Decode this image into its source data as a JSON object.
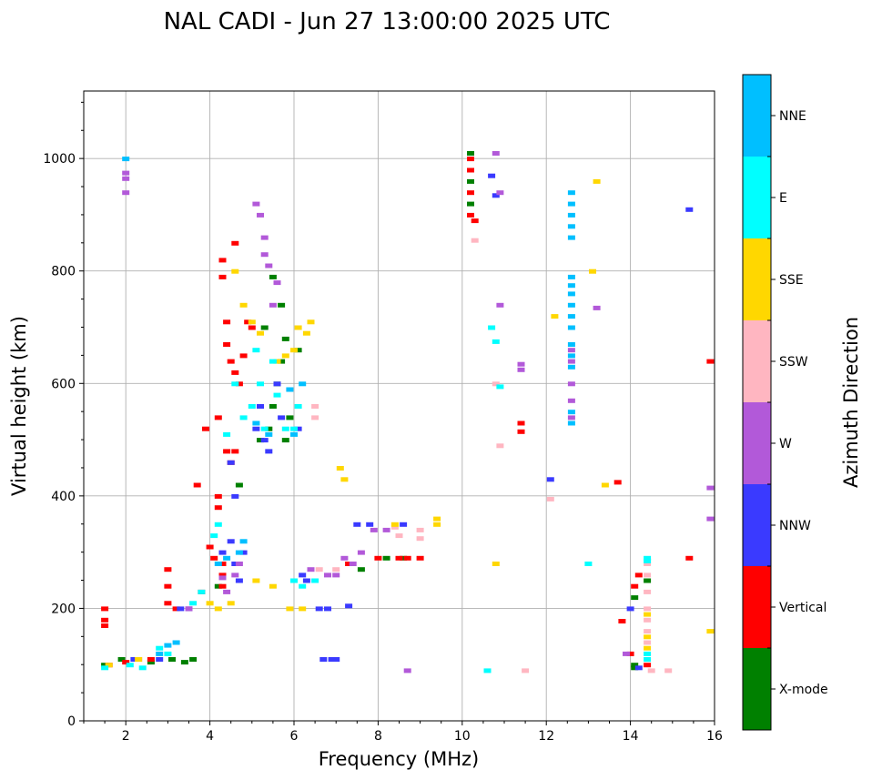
{
  "chart_data": {
    "type": "scatter",
    "title": "NAL CADI - Jun 27 13:00:00 2025 UTC",
    "xlabel": "Frequency (MHz)",
    "ylabel": "Virtual height (km)",
    "xlim": [
      1,
      16
    ],
    "ylim": [
      0,
      1120
    ],
    "xticks": [
      "2",
      "4",
      "6",
      "8",
      "10",
      "12",
      "14",
      "16"
    ],
    "yticks": [
      "0",
      "200",
      "400",
      "600",
      "800",
      "1000"
    ],
    "grid": true,
    "colorbar": {
      "label": "Azimuth Direction",
      "categories": [
        {
          "name": "X-mode",
          "color": "#008000"
        },
        {
          "name": "Vertical",
          "color": "#ff0000"
        },
        {
          "name": "NNW",
          "color": "#3a3aff"
        },
        {
          "name": "W",
          "color": "#b259d9"
        },
        {
          "name": "SSW",
          "color": "#ffb6c1"
        },
        {
          "name": "SSE",
          "color": "#ffd700"
        },
        {
          "name": "E",
          "color": "#00ffff"
        },
        {
          "name": "NNE",
          "color": "#00bfff"
        }
      ]
    },
    "series": [
      {
        "name": "X-mode",
        "points": [
          [
            1.5,
            100
          ],
          [
            1.9,
            110
          ],
          [
            2.6,
            105
          ],
          [
            3.1,
            110
          ],
          [
            3.4,
            105
          ],
          [
            3.6,
            110
          ],
          [
            4.2,
            240
          ],
          [
            4.7,
            420
          ],
          [
            5.2,
            500
          ],
          [
            5.4,
            520
          ],
          [
            5.5,
            560
          ],
          [
            5.6,
            600
          ],
          [
            5.7,
            640
          ],
          [
            5.8,
            680
          ],
          [
            5.7,
            740
          ],
          [
            5.5,
            790
          ],
          [
            5.3,
            700
          ],
          [
            5.8,
            500
          ],
          [
            5.9,
            540
          ],
          [
            6.1,
            660
          ],
          [
            7.6,
            270
          ],
          [
            8.2,
            290
          ],
          [
            8.6,
            290
          ],
          [
            10.2,
            1010
          ],
          [
            10.2,
            960
          ],
          [
            10.2,
            920
          ],
          [
            14.1,
            100
          ],
          [
            14.1,
            95
          ],
          [
            14.1,
            220
          ],
          [
            14.4,
            250
          ]
        ]
      },
      {
        "name": "Vertical",
        "points": [
          [
            1.5,
            200
          ],
          [
            1.5,
            180
          ],
          [
            1.5,
            170
          ],
          [
            1.6,
            100
          ],
          [
            2.0,
            105
          ],
          [
            2.3,
            110
          ],
          [
            2.6,
            110
          ],
          [
            3.0,
            270
          ],
          [
            3.0,
            240
          ],
          [
            3.0,
            210
          ],
          [
            3.2,
            200
          ],
          [
            3.5,
            200
          ],
          [
            3.7,
            420
          ],
          [
            3.8,
            230
          ],
          [
            3.9,
            520
          ],
          [
            4.0,
            310
          ],
          [
            4.1,
            290
          ],
          [
            4.2,
            540
          ],
          [
            4.2,
            400
          ],
          [
            4.2,
            380
          ],
          [
            4.3,
            280
          ],
          [
            4.3,
            260
          ],
          [
            4.3,
            240
          ],
          [
            4.4,
            480
          ],
          [
            4.5,
            460
          ],
          [
            4.6,
            480
          ],
          [
            4.4,
            710
          ],
          [
            4.4,
            670
          ],
          [
            4.5,
            640
          ],
          [
            4.6,
            620
          ],
          [
            4.7,
            600
          ],
          [
            4.8,
            650
          ],
          [
            4.9,
            710
          ],
          [
            5.0,
            700
          ],
          [
            4.3,
            820
          ],
          [
            4.3,
            790
          ],
          [
            4.6,
            850
          ],
          [
            7.3,
            280
          ],
          [
            8.0,
            290
          ],
          [
            8.5,
            290
          ],
          [
            8.7,
            290
          ],
          [
            9.0,
            290
          ],
          [
            10.2,
            1000
          ],
          [
            10.2,
            980
          ],
          [
            10.2,
            940
          ],
          [
            10.2,
            900
          ],
          [
            10.3,
            890
          ],
          [
            11.4,
            530
          ],
          [
            11.4,
            515
          ],
          [
            13.7,
            425
          ],
          [
            13.8,
            178
          ],
          [
            14.0,
            120
          ],
          [
            14.1,
            240
          ],
          [
            14.2,
            260
          ],
          [
            14.4,
            100
          ],
          [
            15.4,
            290
          ],
          [
            15.9,
            640
          ]
        ]
      },
      {
        "name": "NNW",
        "points": [
          [
            2.2,
            110
          ],
          [
            2.8,
            110
          ],
          [
            3.3,
            200
          ],
          [
            3.5,
            200
          ],
          [
            4.3,
            300
          ],
          [
            4.5,
            320
          ],
          [
            4.6,
            280
          ],
          [
            4.7,
            250
          ],
          [
            4.8,
            300
          ],
          [
            4.5,
            460
          ],
          [
            4.6,
            400
          ],
          [
            5.1,
            520
          ],
          [
            5.3,
            500
          ],
          [
            5.4,
            480
          ],
          [
            5.2,
            560
          ],
          [
            5.6,
            600
          ],
          [
            5.7,
            540
          ],
          [
            6.1,
            520
          ],
          [
            6.2,
            260
          ],
          [
            6.3,
            250
          ],
          [
            6.6,
            200
          ],
          [
            6.8,
            200
          ],
          [
            6.7,
            110
          ],
          [
            6.9,
            110
          ],
          [
            7.0,
            110
          ],
          [
            7.3,
            205
          ],
          [
            7.5,
            350
          ],
          [
            7.8,
            350
          ],
          [
            8.6,
            350
          ],
          [
            10.7,
            970
          ],
          [
            10.8,
            935
          ],
          [
            12.1,
            430
          ],
          [
            14.0,
            200
          ],
          [
            14.2,
            95
          ],
          [
            15.4,
            910
          ]
        ]
      },
      {
        "name": "W",
        "points": [
          [
            2.0,
            975
          ],
          [
            2.0,
            965
          ],
          [
            2.0,
            940
          ],
          [
            3.5,
            200
          ],
          [
            4.3,
            255
          ],
          [
            4.4,
            230
          ],
          [
            4.6,
            260
          ],
          [
            4.7,
            280
          ],
          [
            5.1,
            920
          ],
          [
            5.2,
            900
          ],
          [
            5.3,
            860
          ],
          [
            5.3,
            830
          ],
          [
            5.4,
            810
          ],
          [
            5.5,
            740
          ],
          [
            5.6,
            780
          ],
          [
            6.4,
            270
          ],
          [
            6.8,
            260
          ],
          [
            7.0,
            260
          ],
          [
            7.2,
            290
          ],
          [
            7.4,
            280
          ],
          [
            7.6,
            300
          ],
          [
            7.9,
            340
          ],
          [
            8.2,
            340
          ],
          [
            8.7,
            90
          ],
          [
            10.8,
            1010
          ],
          [
            10.9,
            940
          ],
          [
            10.9,
            740
          ],
          [
            11.4,
            635
          ],
          [
            11.4,
            625
          ],
          [
            12.6,
            600
          ],
          [
            12.6,
            570
          ],
          [
            12.6,
            540
          ],
          [
            12.6,
            660
          ],
          [
            12.6,
            640
          ],
          [
            13.2,
            735
          ],
          [
            13.9,
            120
          ],
          [
            15.9,
            415
          ],
          [
            15.9,
            360
          ]
        ]
      },
      {
        "name": "SSW",
        "points": [
          [
            6.5,
            540
          ],
          [
            6.5,
            560
          ],
          [
            6.6,
            270
          ],
          [
            7.0,
            270
          ],
          [
            8.4,
            345
          ],
          [
            8.5,
            330
          ],
          [
            9.0,
            340
          ],
          [
            9.0,
            325
          ],
          [
            10.3,
            855
          ],
          [
            10.8,
            600
          ],
          [
            10.9,
            490
          ],
          [
            11.5,
            90
          ],
          [
            12.1,
            395
          ],
          [
            14.4,
            280
          ],
          [
            14.4,
            260
          ],
          [
            14.4,
            230
          ],
          [
            14.4,
            200
          ],
          [
            14.4,
            180
          ],
          [
            14.4,
            160
          ],
          [
            14.4,
            140
          ],
          [
            14.5,
            90
          ],
          [
            14.9,
            90
          ]
        ]
      },
      {
        "name": "SSE",
        "points": [
          [
            1.6,
            100
          ],
          [
            2.3,
            110
          ],
          [
            4.0,
            210
          ],
          [
            4.2,
            200
          ],
          [
            4.5,
            210
          ],
          [
            4.8,
            740
          ],
          [
            4.6,
            800
          ],
          [
            5.0,
            710
          ],
          [
            5.2,
            690
          ],
          [
            5.6,
            640
          ],
          [
            5.8,
            650
          ],
          [
            6.0,
            660
          ],
          [
            6.1,
            700
          ],
          [
            6.3,
            690
          ],
          [
            6.4,
            710
          ],
          [
            5.1,
            250
          ],
          [
            5.5,
            240
          ],
          [
            5.9,
            200
          ],
          [
            6.2,
            200
          ],
          [
            7.1,
            450
          ],
          [
            7.2,
            430
          ],
          [
            8.4,
            350
          ],
          [
            9.4,
            360
          ],
          [
            9.4,
            350
          ],
          [
            10.8,
            280
          ],
          [
            12.2,
            720
          ],
          [
            13.1,
            800
          ],
          [
            13.2,
            960
          ],
          [
            13.4,
            420
          ],
          [
            14.4,
            190
          ],
          [
            14.4,
            150
          ],
          [
            14.4,
            130
          ],
          [
            15.9,
            160
          ]
        ]
      },
      {
        "name": "E",
        "points": [
          [
            1.5,
            95
          ],
          [
            2.1,
            100
          ],
          [
            2.4,
            95
          ],
          [
            2.8,
            130
          ],
          [
            3.0,
            120
          ],
          [
            3.6,
            210
          ],
          [
            3.8,
            230
          ],
          [
            4.1,
            330
          ],
          [
            4.2,
            350
          ],
          [
            4.4,
            510
          ],
          [
            4.6,
            600
          ],
          [
            4.8,
            540
          ],
          [
            5.0,
            560
          ],
          [
            5.1,
            660
          ],
          [
            5.2,
            600
          ],
          [
            5.3,
            520
          ],
          [
            5.6,
            580
          ],
          [
            5.8,
            520
          ],
          [
            6.0,
            520
          ],
          [
            5.5,
            640
          ],
          [
            6.1,
            560
          ],
          [
            6.0,
            250
          ],
          [
            6.2,
            240
          ],
          [
            6.5,
            250
          ],
          [
            10.7,
            700
          ],
          [
            10.8,
            675
          ],
          [
            10.9,
            595
          ],
          [
            10.6,
            90
          ],
          [
            13.0,
            280
          ],
          [
            14.4,
            120
          ],
          [
            14.4,
            110
          ],
          [
            14.4,
            285
          ],
          [
            14.4,
            290
          ]
        ]
      },
      {
        "name": "NNE",
        "points": [
          [
            2.0,
            1000
          ],
          [
            2.8,
            120
          ],
          [
            3.0,
            135
          ],
          [
            3.2,
            140
          ],
          [
            4.2,
            280
          ],
          [
            4.4,
            290
          ],
          [
            4.7,
            300
          ],
          [
            4.8,
            320
          ],
          [
            5.1,
            530
          ],
          [
            5.4,
            510
          ],
          [
            5.9,
            590
          ],
          [
            6.0,
            510
          ],
          [
            6.2,
            600
          ],
          [
            12.6,
            940
          ],
          [
            12.6,
            920
          ],
          [
            12.6,
            900
          ],
          [
            12.6,
            880
          ],
          [
            12.6,
            860
          ],
          [
            12.6,
            790
          ],
          [
            12.6,
            775
          ],
          [
            12.6,
            760
          ],
          [
            12.6,
            740
          ],
          [
            12.6,
            720
          ],
          [
            12.6,
            700
          ],
          [
            12.6,
            670
          ],
          [
            12.6,
            650
          ],
          [
            12.6,
            630
          ],
          [
            12.6,
            550
          ],
          [
            12.6,
            530
          ]
        ]
      }
    ]
  }
}
